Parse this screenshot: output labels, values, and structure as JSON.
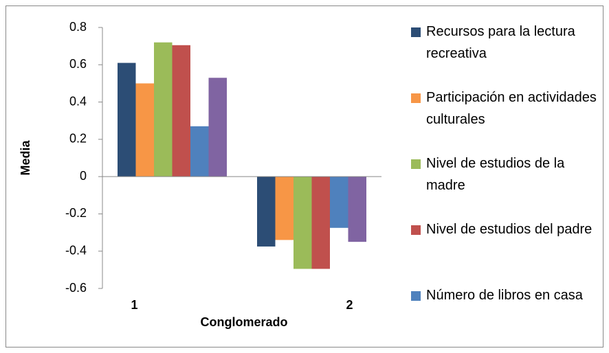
{
  "chart_data": {
    "type": "bar",
    "x_label": "Conglomerado",
    "y_label": "Media",
    "categories": [
      "1",
      "2"
    ],
    "series": [
      {
        "name": "Recursos para la lectura recreativa",
        "color": "#2c4d75",
        "values": [
          0.61,
          -0.375
        ]
      },
      {
        "name": "Participación en actividades culturales",
        "color": "#f79646",
        "values": [
          0.5,
          -0.34
        ]
      },
      {
        "name": "Nivel de estudios de la madre",
        "color": "#9bbb59",
        "values": [
          0.72,
          -0.495
        ]
      },
      {
        "name": "Nivel de estudios del padre",
        "color": "#c0504d",
        "values": [
          0.705,
          -0.495
        ]
      },
      {
        "name": "Número de libros en casa",
        "color": "#4f81bd",
        "values": [
          0.27,
          -0.275
        ]
      },
      {
        "color": "#8064a2",
        "values": [
          0.53,
          -0.35
        ]
      }
    ],
    "ylim": [
      -0.6,
      0.8
    ],
    "yticks": [
      0.8,
      0.6,
      0.4,
      0.2,
      0,
      -0.2,
      -0.4,
      -0.6
    ],
    "legend": "right"
  }
}
